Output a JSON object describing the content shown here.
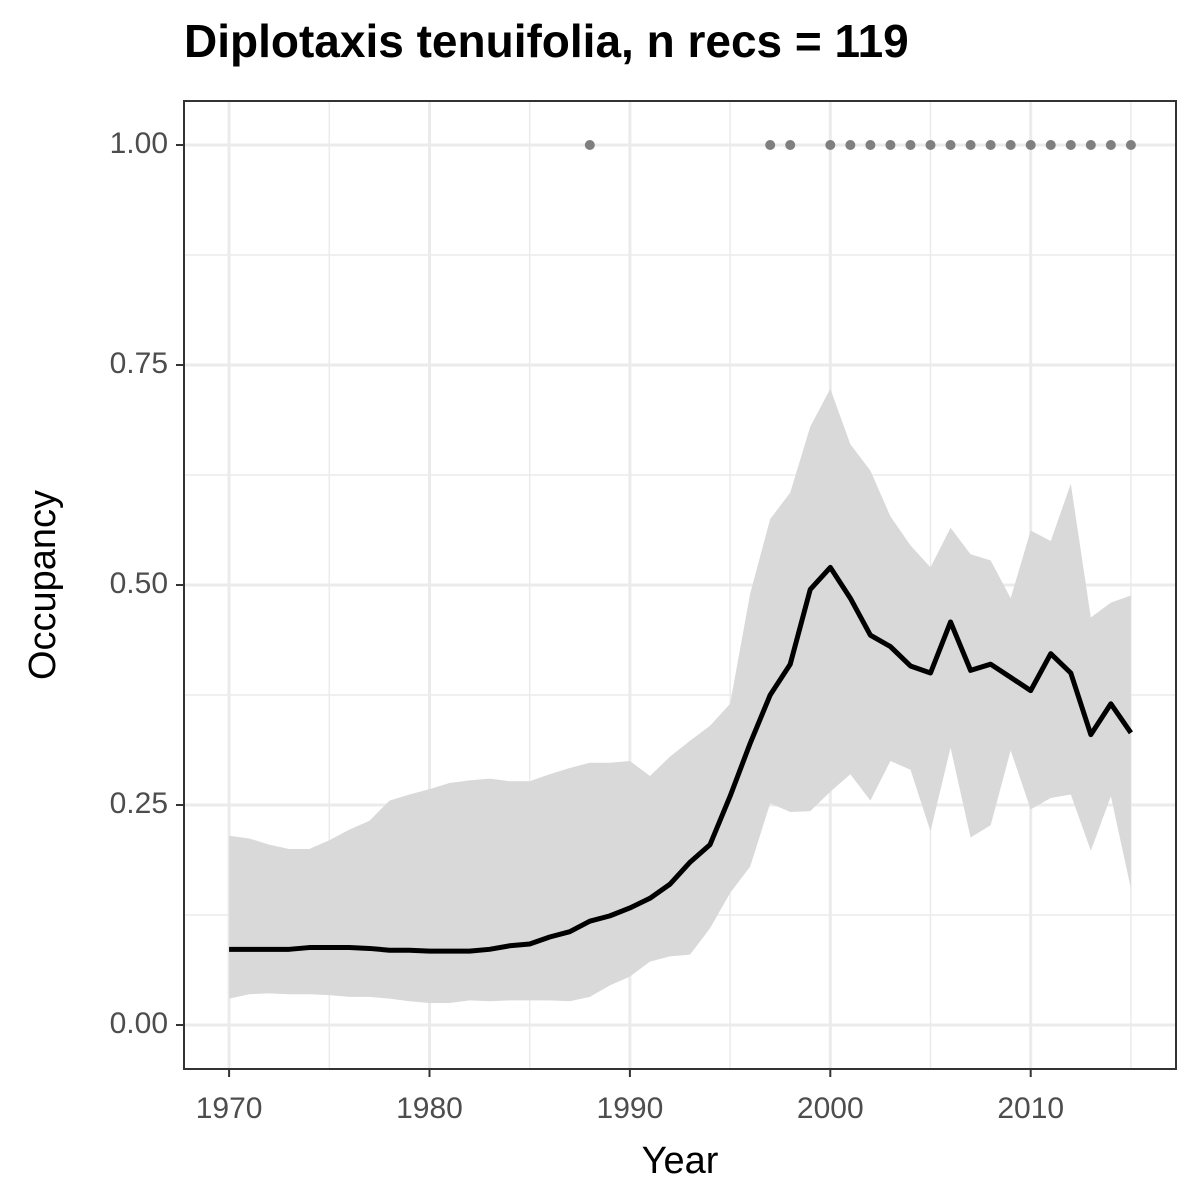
{
  "chart_data": {
    "type": "line",
    "title": "Diplotaxis tenuifolia, n recs = 119",
    "xlabel": "Year",
    "ylabel": "Occupancy",
    "x": [
      1970,
      1971,
      1972,
      1973,
      1974,
      1975,
      1976,
      1977,
      1978,
      1979,
      1980,
      1981,
      1982,
      1983,
      1984,
      1985,
      1986,
      1987,
      1988,
      1989,
      1990,
      1991,
      1992,
      1993,
      1994,
      1995,
      1996,
      1997,
      1998,
      1999,
      2000,
      2001,
      2002,
      2003,
      2004,
      2005,
      2006,
      2007,
      2008,
      2009,
      2010,
      2011,
      2012,
      2013,
      2014,
      2015
    ],
    "series": [
      {
        "color": "#000000",
        "band_color": "#d9d9d9",
        "values": [
          0.086,
          0.086,
          0.086,
          0.086,
          0.088,
          0.088,
          0.088,
          0.087,
          0.085,
          0.085,
          0.084,
          0.084,
          0.084,
          0.086,
          0.09,
          0.092,
          0.1,
          0.106,
          0.118,
          0.124,
          0.133,
          0.144,
          0.16,
          0.185,
          0.205,
          0.26,
          0.32,
          0.375,
          0.41,
          0.495,
          0.52,
          0.485,
          0.443,
          0.43,
          0.408,
          0.4,
          0.458,
          0.403,
          0.41,
          0.395,
          0.38,
          0.422,
          0.4,
          0.33,
          0.365,
          0.332
        ],
        "upper": [
          0.215,
          0.212,
          0.205,
          0.2,
          0.2,
          0.21,
          0.222,
          0.232,
          0.255,
          0.262,
          0.268,
          0.275,
          0.278,
          0.28,
          0.277,
          0.277,
          0.285,
          0.292,
          0.298,
          0.298,
          0.3,
          0.283,
          0.305,
          0.323,
          0.34,
          0.365,
          0.49,
          0.575,
          0.605,
          0.68,
          0.723,
          0.66,
          0.63,
          0.578,
          0.545,
          0.52,
          0.565,
          0.535,
          0.528,
          0.485,
          0.562,
          0.55,
          0.615,
          0.463,
          0.48,
          0.488
        ],
        "lower": [
          0.03,
          0.035,
          0.036,
          0.035,
          0.035,
          0.034,
          0.032,
          0.032,
          0.03,
          0.027,
          0.025,
          0.025,
          0.028,
          0.027,
          0.028,
          0.028,
          0.028,
          0.027,
          0.032,
          0.045,
          0.055,
          0.072,
          0.078,
          0.08,
          0.11,
          0.15,
          0.18,
          0.252,
          0.242,
          0.243,
          0.265,
          0.285,
          0.255,
          0.3,
          0.29,
          0.22,
          0.315,
          0.213,
          0.227,
          0.312,
          0.245,
          0.258,
          0.262,
          0.198,
          0.26,
          0.155
        ]
      }
    ],
    "points": {
      "color": "#7f7f7f",
      "x": [
        1988,
        1997,
        1998,
        2000,
        2001,
        2002,
        2003,
        2004,
        2005,
        2006,
        2007,
        2008,
        2009,
        2010,
        2011,
        2012,
        2013,
        2014,
        2015
      ],
      "values": [
        1,
        1,
        1,
        1,
        1,
        1,
        1,
        1,
        1,
        1,
        1,
        1,
        1,
        1,
        1,
        1,
        1,
        1,
        1
      ]
    },
    "xlim": [
      1967.75,
      2017.25
    ],
    "ylim": [
      -0.05,
      1.05
    ],
    "xticks": [
      1970,
      1980,
      1990,
      2000,
      2010
    ],
    "yticks": [
      {
        "value": 0,
        "label": "0.00"
      },
      {
        "value": 0.25,
        "label": "0.25"
      },
      {
        "value": 0.5,
        "label": "0.50"
      },
      {
        "value": 0.75,
        "label": "0.75"
      },
      {
        "value": 1,
        "label": "1.00"
      }
    ],
    "xminorticks": [
      1975,
      1985,
      1995,
      2005,
      2015
    ],
    "yminorticks": [
      0.125,
      0.375,
      0.625,
      0.875
    ],
    "grid": true
  }
}
